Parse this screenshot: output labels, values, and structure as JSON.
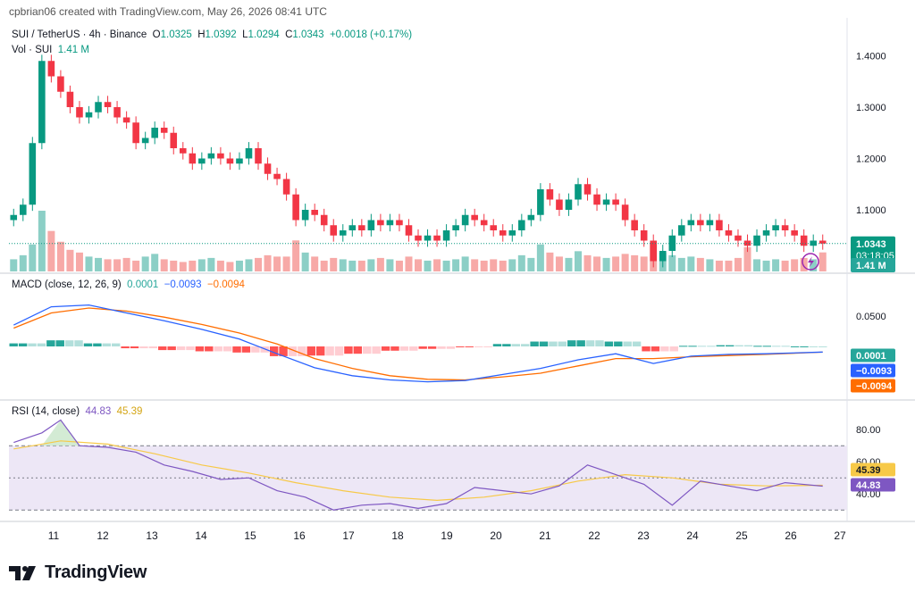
{
  "header": {
    "attribution": "cpbrian06 created with TradingView.com, May 26, 2026 08:41 UTC"
  },
  "main_legend": {
    "symbol": "SUI / TetherUS · 4h · Binance",
    "open_label": "O",
    "open": "1.0325",
    "high_label": "H",
    "high": "1.0392",
    "low_label": "L",
    "low": "1.0294",
    "close_label": "C",
    "close": "1.0343",
    "change": "+0.0018 (+0.17%)"
  },
  "volume_legend": {
    "label": "Vol · SUI",
    "value": "1.41 M"
  },
  "price_axis": {
    "ticks": [
      "1.4000",
      "1.3000",
      "1.2000",
      "1.1000"
    ],
    "last_price": "1.0343",
    "countdown": "03:18:05",
    "volume_badge": "1.41 M"
  },
  "macd": {
    "label": "MACD (close, 12, 26, 9)",
    "hist_value": "0.0001",
    "macd_value": "−0.0093",
    "signal_value": "−0.0094",
    "ticks": [
      "0.0500"
    ],
    "badges": [
      "0.0001",
      "−0.0093",
      "−0.0094"
    ]
  },
  "rsi": {
    "label": "RSI (14, close)",
    "rsi_value": "44.83",
    "ma_value": "45.39",
    "ticks": [
      "80.00",
      "60.00",
      "40.00"
    ],
    "badges": [
      "45.39",
      "44.83"
    ]
  },
  "time_axis": {
    "labels": [
      "11",
      "12",
      "13",
      "14",
      "15",
      "16",
      "17",
      "18",
      "19",
      "20",
      "21",
      "22",
      "23",
      "24",
      "25",
      "26",
      "27"
    ]
  },
  "branding": {
    "logo_text": "TradingView"
  },
  "colors": {
    "up": "#089981",
    "down": "#F23645",
    "vol_up": "#8ccfc6",
    "vol_down": "#f7a9a7",
    "macd_line": "#2962FF",
    "signal_line": "#FF6D00",
    "rsi_line": "#7E57C2",
    "rsi_ma": "#F7C948",
    "rsi_band": "#EDE7F6"
  },
  "chart_data": [
    {
      "type": "candlestick",
      "title": "SUI / TetherUS · 4h · Binance",
      "x_labels": [
        "11",
        "12",
        "13",
        "14",
        "15",
        "16",
        "17",
        "18",
        "19",
        "20",
        "21",
        "22",
        "23",
        "24",
        "25",
        "26",
        "27"
      ],
      "ylim": [
        0.98,
        1.46
      ],
      "last_price": 1.0343,
      "closes": [
        1.09,
        1.11,
        1.23,
        1.39,
        1.36,
        1.33,
        1.3,
        1.28,
        1.29,
        1.31,
        1.3,
        1.28,
        1.27,
        1.23,
        1.24,
        1.26,
        1.25,
        1.22,
        1.21,
        1.19,
        1.2,
        1.21,
        1.2,
        1.19,
        1.2,
        1.22,
        1.19,
        1.17,
        1.16,
        1.13,
        1.08,
        1.1,
        1.09,
        1.07,
        1.05,
        1.06,
        1.07,
        1.06,
        1.08,
        1.07,
        1.08,
        1.07,
        1.05,
        1.04,
        1.05,
        1.04,
        1.06,
        1.07,
        1.09,
        1.08,
        1.07,
        1.06,
        1.05,
        1.06,
        1.08,
        1.09,
        1.14,
        1.12,
        1.1,
        1.12,
        1.15,
        1.13,
        1.11,
        1.12,
        1.11,
        1.08,
        1.06,
        1.04,
        1.0,
        1.02,
        1.05,
        1.07,
        1.08,
        1.07,
        1.08,
        1.06,
        1.05,
        1.04,
        1.03,
        1.05,
        1.06,
        1.07,
        1.06,
        1.05,
        1.03,
        1.04,
        1.0343
      ]
    },
    {
      "type": "bar",
      "title": "Vol · SUI",
      "last_value": "1.41 M",
      "values": [
        0.9,
        1.2,
        2.0,
        4.5,
        3.0,
        2.2,
        1.6,
        1.4,
        1.1,
        1.0,
        0.9,
        0.9,
        1.0,
        0.8,
        1.1,
        1.3,
        0.9,
        0.8,
        0.7,
        0.8,
        0.9,
        1.0,
        0.8,
        0.7,
        0.8,
        0.9,
        1.0,
        1.2,
        1.1,
        1.1,
        2.3,
        1.4,
        1.1,
        0.8,
        1.0,
        0.9,
        0.8,
        0.8,
        0.9,
        1.0,
        0.9,
        0.8,
        1.1,
        0.9,
        0.8,
        0.9,
        0.8,
        0.9,
        1.1,
        0.9,
        0.8,
        0.9,
        0.8,
        0.9,
        1.2,
        1.0,
        2.0,
        1.4,
        1.1,
        1.0,
        1.5,
        1.2,
        1.1,
        1.0,
        1.1,
        1.3,
        1.2,
        1.1,
        2.0,
        1.4,
        1.2,
        1.0,
        1.1,
        1.0,
        0.9,
        0.8,
        0.8,
        1.0,
        1.8,
        0.9,
        0.8,
        0.9,
        0.8,
        0.9,
        1.0,
        0.9,
        1.41
      ]
    },
    {
      "type": "line",
      "title": "MACD (close, 12, 26, 9)",
      "ylim": [
        -0.085,
        0.085
      ],
      "series": [
        {
          "name": "MACD",
          "x": [
            0,
            4,
            8,
            12,
            16,
            20,
            24,
            28,
            32,
            36,
            40,
            44,
            48,
            52,
            56,
            60,
            64,
            68,
            72,
            76,
            80,
            86
          ],
          "values": [
            0.035,
            0.065,
            0.068,
            0.055,
            0.042,
            0.028,
            0.012,
            -0.012,
            -0.035,
            -0.048,
            -0.055,
            -0.058,
            -0.056,
            -0.046,
            -0.036,
            -0.022,
            -0.012,
            -0.028,
            -0.016,
            -0.013,
            -0.012,
            -0.0093
          ]
        },
        {
          "name": "Signal",
          "x": [
            0,
            4,
            8,
            12,
            16,
            20,
            24,
            28,
            32,
            36,
            40,
            44,
            48,
            52,
            56,
            60,
            64,
            68,
            72,
            76,
            80,
            86
          ],
          "values": [
            0.03,
            0.055,
            0.063,
            0.058,
            0.048,
            0.036,
            0.022,
            0.004,
            -0.02,
            -0.036,
            -0.048,
            -0.054,
            -0.055,
            -0.05,
            -0.044,
            -0.032,
            -0.02,
            -0.02,
            -0.017,
            -0.015,
            -0.013,
            -0.0094
          ]
        },
        {
          "name": "Histogram",
          "values": [
            0.005,
            0.01,
            0.005,
            -0.003,
            -0.006,
            -0.008,
            -0.01,
            -0.016,
            -0.015,
            -0.012,
            -0.007,
            -0.004,
            -0.001,
            0.004,
            0.008,
            0.01,
            0.008,
            -0.008,
            0.001,
            0.002,
            0.001,
            0.0001
          ]
        }
      ],
      "last_values": {
        "histogram": 0.0001,
        "macd": -0.0093,
        "signal": -0.0094
      }
    },
    {
      "type": "line",
      "title": "RSI (14, close)",
      "ylim": [
        24,
        94
      ],
      "bands": [
        70,
        50,
        30
      ],
      "series": [
        {
          "name": "RSI",
          "x": [
            0,
            3,
            5,
            7,
            10,
            13,
            16,
            19,
            22,
            25,
            28,
            31,
            34,
            37,
            40,
            43,
            46,
            49,
            52,
            55,
            58,
            61,
            64,
            67,
            70,
            73,
            76,
            79,
            82,
            86
          ],
          "values": [
            72,
            78,
            86,
            70,
            69,
            66,
            58,
            54,
            49,
            50,
            42,
            38,
            30,
            33,
            34,
            31,
            34,
            44,
            42,
            40,
            45,
            58,
            52,
            46,
            33,
            48,
            45,
            42,
            47,
            44.83
          ]
        },
        {
          "name": "MA",
          "x": [
            0,
            5,
            10,
            15,
            20,
            25,
            30,
            35,
            40,
            45,
            50,
            55,
            60,
            65,
            70,
            75,
            80,
            86
          ],
          "values": [
            68,
            73,
            71,
            65,
            58,
            53,
            47,
            42,
            38,
            36,
            38,
            42,
            48,
            52,
            50,
            46,
            45,
            45.39
          ]
        }
      ],
      "last_values": {
        "rsi": 44.83,
        "ma": 45.39
      }
    }
  ]
}
